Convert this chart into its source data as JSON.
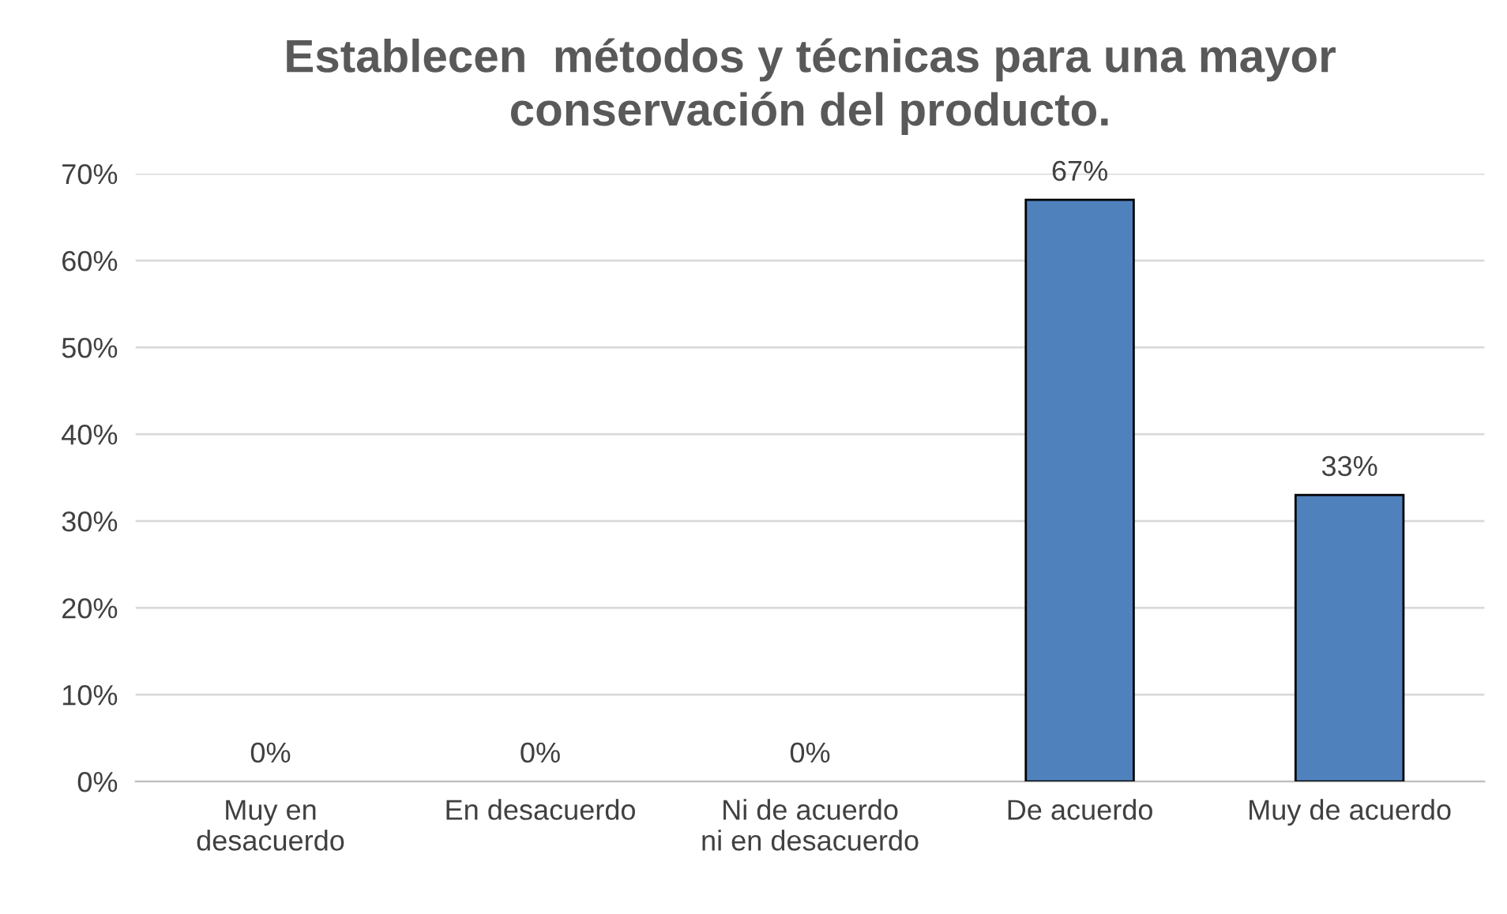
{
  "chart_data": {
    "type": "bar",
    "title": "Establecen  métodos y técnicas para una mayor\nconservación del producto.",
    "categories": [
      "Muy en\ndesacuerdo",
      "En desacuerdo",
      "Ni de acuerdo\nni en desacuerdo",
      "De acuerdo",
      "Muy de acuerdo"
    ],
    "values": [
      0,
      0,
      0,
      67,
      33
    ],
    "value_labels": [
      "0%",
      "0%",
      "0%",
      "67%",
      "33%"
    ],
    "color": "#4f81bd",
    "ylim": [
      0,
      70
    ],
    "yticks": [
      {
        "value": 0,
        "label": "0%"
      },
      {
        "value": 10,
        "label": "10%"
      },
      {
        "value": 20,
        "label": "20%"
      },
      {
        "value": 30,
        "label": "30%"
      },
      {
        "value": 40,
        "label": "40%"
      },
      {
        "value": 50,
        "label": "50%"
      },
      {
        "value": 60,
        "label": "60%"
      },
      {
        "value": 70,
        "label": "70%"
      }
    ],
    "grid": "y",
    "legend": false
  }
}
